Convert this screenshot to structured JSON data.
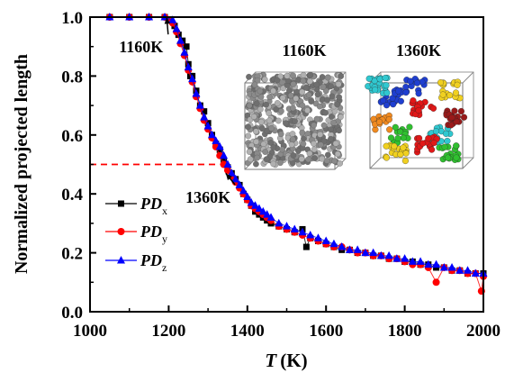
{
  "chart_data": {
    "type": "scatter",
    "xlabel_italic": "T",
    "xlabel_unit": "(K)",
    "ylabel": "Normalized projected length",
    "xlim": [
      1000,
      2000
    ],
    "ylim": [
      0.0,
      1.0
    ],
    "x_ticks": [
      "1000",
      "1200",
      "1400",
      "1600",
      "1800",
      "2000"
    ],
    "y_ticks": [
      "0.0",
      "0.2",
      "0.4",
      "0.6",
      "0.8",
      "1.0"
    ],
    "grid": false,
    "legend_position": "left",
    "series": [
      {
        "name": "PD",
        "subscript": "x",
        "color": "#000000",
        "marker": "square",
        "points": [
          [
            1050,
            1.0
          ],
          [
            1100,
            1.0
          ],
          [
            1150,
            1.0
          ],
          [
            1190,
            1.0
          ],
          [
            1205,
            0.99
          ],
          [
            1215,
            0.97
          ],
          [
            1225,
            0.94
          ],
          [
            1235,
            0.92
          ],
          [
            1245,
            0.9
          ],
          [
            1250,
            0.84
          ],
          [
            1255,
            0.8
          ],
          [
            1260,
            0.8
          ],
          [
            1270,
            0.75
          ],
          [
            1280,
            0.7
          ],
          [
            1290,
            0.68
          ],
          [
            1300,
            0.64
          ],
          [
            1310,
            0.6
          ],
          [
            1320,
            0.57
          ],
          [
            1330,
            0.55
          ],
          [
            1340,
            0.51
          ],
          [
            1350,
            0.49
          ],
          [
            1360,
            0.47
          ],
          [
            1370,
            0.45
          ],
          [
            1380,
            0.43
          ],
          [
            1390,
            0.4
          ],
          [
            1400,
            0.38
          ],
          [
            1410,
            0.36
          ],
          [
            1420,
            0.34
          ],
          [
            1430,
            0.33
          ],
          [
            1440,
            0.32
          ],
          [
            1450,
            0.31
          ],
          [
            1460,
            0.3
          ],
          [
            1480,
            0.29
          ],
          [
            1500,
            0.28
          ],
          [
            1520,
            0.27
          ],
          [
            1540,
            0.28
          ],
          [
            1550,
            0.22
          ],
          [
            1560,
            0.25
          ],
          [
            1580,
            0.24
          ],
          [
            1600,
            0.23
          ],
          [
            1620,
            0.22
          ],
          [
            1640,
            0.21
          ],
          [
            1660,
            0.21
          ],
          [
            1680,
            0.2
          ],
          [
            1700,
            0.2
          ],
          [
            1720,
            0.19
          ],
          [
            1740,
            0.19
          ],
          [
            1760,
            0.18
          ],
          [
            1780,
            0.18
          ],
          [
            1800,
            0.17
          ],
          [
            1820,
            0.17
          ],
          [
            1840,
            0.16
          ],
          [
            1860,
            0.16
          ],
          [
            1880,
            0.15
          ],
          [
            1900,
            0.15
          ],
          [
            1920,
            0.14
          ],
          [
            1940,
            0.14
          ],
          [
            1960,
            0.13
          ],
          [
            1980,
            0.13
          ],
          [
            2000,
            0.13
          ]
        ]
      },
      {
        "name": "PD",
        "subscript": "y",
        "color": "#ff0000",
        "marker": "circle",
        "points": [
          [
            1050,
            1.0
          ],
          [
            1100,
            1.0
          ],
          [
            1150,
            1.0
          ],
          [
            1190,
            1.0
          ],
          [
            1200,
            0.99
          ],
          [
            1210,
            0.98
          ],
          [
            1220,
            0.95
          ],
          [
            1230,
            0.91
          ],
          [
            1240,
            0.87
          ],
          [
            1250,
            0.82
          ],
          [
            1260,
            0.78
          ],
          [
            1270,
            0.73
          ],
          [
            1280,
            0.69
          ],
          [
            1290,
            0.65
          ],
          [
            1300,
            0.62
          ],
          [
            1310,
            0.59
          ],
          [
            1320,
            0.56
          ],
          [
            1330,
            0.53
          ],
          [
            1340,
            0.5
          ],
          [
            1350,
            0.48
          ],
          [
            1360,
            0.46
          ],
          [
            1370,
            0.44
          ],
          [
            1380,
            0.42
          ],
          [
            1390,
            0.4
          ],
          [
            1400,
            0.38
          ],
          [
            1410,
            0.36
          ],
          [
            1420,
            0.35
          ],
          [
            1430,
            0.34
          ],
          [
            1440,
            0.33
          ],
          [
            1450,
            0.32
          ],
          [
            1460,
            0.31
          ],
          [
            1480,
            0.29
          ],
          [
            1500,
            0.28
          ],
          [
            1520,
            0.27
          ],
          [
            1540,
            0.26
          ],
          [
            1560,
            0.25
          ],
          [
            1580,
            0.24
          ],
          [
            1600,
            0.23
          ],
          [
            1620,
            0.22
          ],
          [
            1640,
            0.22
          ],
          [
            1660,
            0.21
          ],
          [
            1680,
            0.2
          ],
          [
            1700,
            0.2
          ],
          [
            1720,
            0.19
          ],
          [
            1740,
            0.19
          ],
          [
            1760,
            0.18
          ],
          [
            1780,
            0.18
          ],
          [
            1800,
            0.17
          ],
          [
            1820,
            0.16
          ],
          [
            1840,
            0.16
          ],
          [
            1860,
            0.15
          ],
          [
            1880,
            0.1
          ],
          [
            1900,
            0.15
          ],
          [
            1920,
            0.14
          ],
          [
            1940,
            0.14
          ],
          [
            1960,
            0.13
          ],
          [
            1980,
            0.13
          ],
          [
            1995,
            0.07
          ],
          [
            2000,
            0.12
          ]
        ]
      },
      {
        "name": "PD",
        "subscript": "z",
        "color": "#0000ff",
        "marker": "triangle",
        "points": [
          [
            1050,
            1.0
          ],
          [
            1100,
            1.0
          ],
          [
            1150,
            1.0
          ],
          [
            1190,
            1.0
          ],
          [
            1210,
            0.99
          ],
          [
            1220,
            0.96
          ],
          [
            1230,
            0.92
          ],
          [
            1240,
            0.88
          ],
          [
            1250,
            0.83
          ],
          [
            1260,
            0.79
          ],
          [
            1270,
            0.74
          ],
          [
            1280,
            0.7
          ],
          [
            1290,
            0.66
          ],
          [
            1300,
            0.63
          ],
          [
            1310,
            0.6
          ],
          [
            1320,
            0.58
          ],
          [
            1330,
            0.56
          ],
          [
            1340,
            0.53
          ],
          [
            1350,
            0.5
          ],
          [
            1360,
            0.47
          ],
          [
            1370,
            0.45
          ],
          [
            1380,
            0.43
          ],
          [
            1390,
            0.41
          ],
          [
            1400,
            0.39
          ],
          [
            1410,
            0.37
          ],
          [
            1420,
            0.36
          ],
          [
            1430,
            0.35
          ],
          [
            1440,
            0.34
          ],
          [
            1450,
            0.33
          ],
          [
            1460,
            0.32
          ],
          [
            1480,
            0.3
          ],
          [
            1500,
            0.29
          ],
          [
            1520,
            0.28
          ],
          [
            1540,
            0.27
          ],
          [
            1560,
            0.26
          ],
          [
            1580,
            0.25
          ],
          [
            1600,
            0.24
          ],
          [
            1620,
            0.23
          ],
          [
            1640,
            0.22
          ],
          [
            1660,
            0.21
          ],
          [
            1680,
            0.21
          ],
          [
            1700,
            0.2
          ],
          [
            1720,
            0.2
          ],
          [
            1740,
            0.19
          ],
          [
            1760,
            0.19
          ],
          [
            1780,
            0.18
          ],
          [
            1800,
            0.18
          ],
          [
            1820,
            0.17
          ],
          [
            1840,
            0.17
          ],
          [
            1860,
            0.16
          ],
          [
            1880,
            0.16
          ],
          [
            1900,
            0.15
          ],
          [
            1920,
            0.15
          ],
          [
            1940,
            0.14
          ],
          [
            1960,
            0.14
          ],
          [
            1980,
            0.13
          ],
          [
            2000,
            0.13
          ]
        ]
      }
    ],
    "reference_line": {
      "y": 0.5,
      "x_start": 1000,
      "x_end": 1330,
      "color": "#ff0000",
      "style": "dashed"
    },
    "annotations": [
      {
        "text": "1160K",
        "target": [
          1195,
          1.0
        ],
        "label_at": [
          1130,
          0.88
        ]
      },
      {
        "text": "1360K",
        "target": [
          1345,
          0.47
        ],
        "label_at": [
          1300,
          0.37
        ]
      }
    ],
    "insets": [
      {
        "label": "1160K",
        "description_colors": [
          "#8a8a8a",
          "#b0b0b0",
          "#6f6f6f"
        ]
      },
      {
        "label": "1360K",
        "description_colors": [
          "#1f3fd0",
          "#e01818",
          "#f0d020",
          "#30c030",
          "#30c8d0",
          "#f08a20",
          "#9a1a1a"
        ]
      }
    ]
  }
}
